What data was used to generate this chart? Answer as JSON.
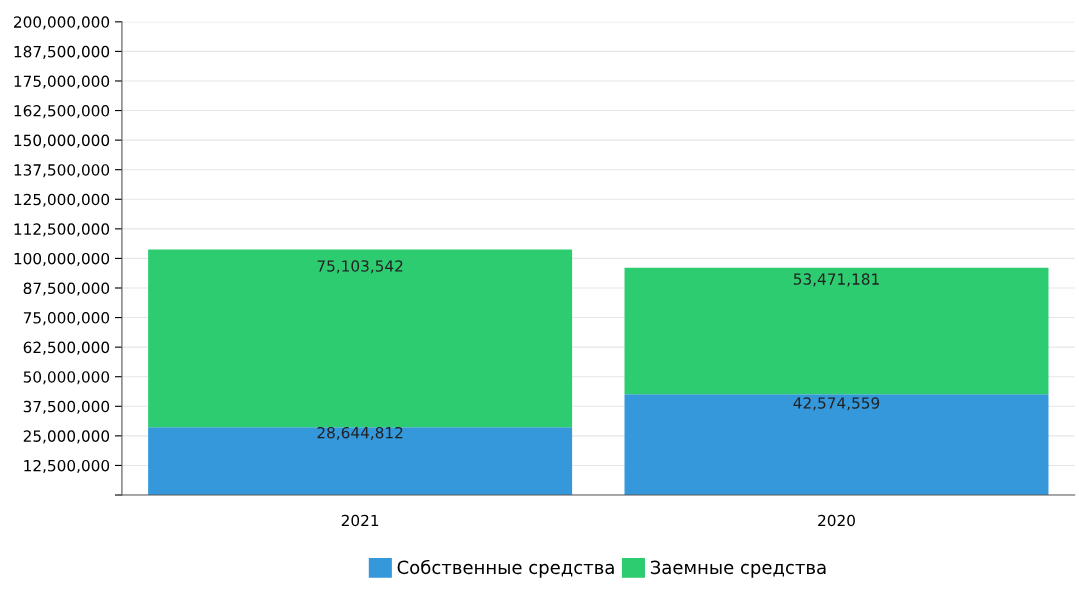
{
  "chart_data": {
    "type": "bar",
    "stacked": true,
    "categories": [
      "2021",
      "2020"
    ],
    "series": [
      {
        "name": "Собственные средства",
        "color": "#3498db",
        "values": [
          28644812,
          42574559
        ],
        "value_labels": [
          "28,644,812",
          "42,574,559"
        ]
      },
      {
        "name": "Заемные средства",
        "color": "#2ecc71",
        "values": [
          75103542,
          53471181
        ],
        "value_labels": [
          "75,103,542",
          "53,471,181"
        ]
      }
    ],
    "ylim": [
      0,
      200000000
    ],
    "yticks": [
      {
        "value": 0,
        "label": null
      },
      {
        "value": 12500000,
        "label": "12,500,000"
      },
      {
        "value": 25000000,
        "label": "25,000,000"
      },
      {
        "value": 37500000,
        "label": "37,500,000"
      },
      {
        "value": 50000000,
        "label": "50,000,000"
      },
      {
        "value": 62500000,
        "label": "62,500,000"
      },
      {
        "value": 75000000,
        "label": "75,000,000"
      },
      {
        "value": 87500000,
        "label": "87,500,000"
      },
      {
        "value": 100000000,
        "label": "100,000,000"
      },
      {
        "value": 112500000,
        "label": "112,500,000"
      },
      {
        "value": 125000000,
        "label": "125,000,000"
      },
      {
        "value": 137500000,
        "label": "137,500,000"
      },
      {
        "value": 150000000,
        "label": "150,000,000"
      },
      {
        "value": 162500000,
        "label": "162,500,000"
      },
      {
        "value": 175000000,
        "label": "175,000,000"
      },
      {
        "value": 187500000,
        "label": "187,500,000"
      },
      {
        "value": 200000000,
        "label": "200,000,000"
      }
    ],
    "grid": "y",
    "legend": "bottom"
  }
}
